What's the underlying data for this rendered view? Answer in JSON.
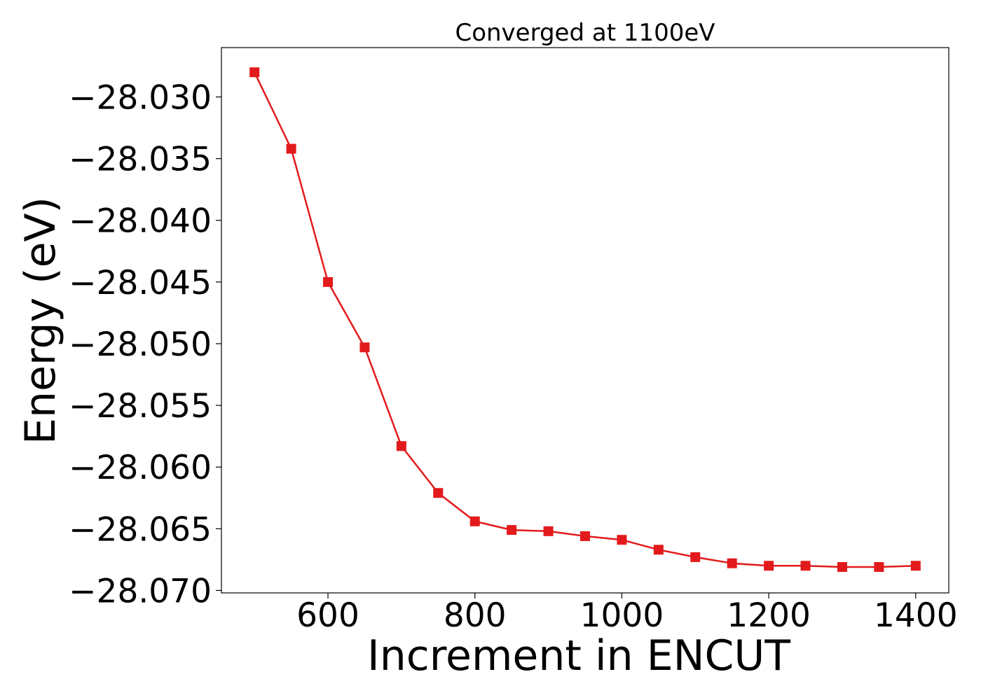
{
  "chart_data": {
    "type": "line",
    "title": "Converged at 1100eV",
    "xlabel": "Increment in ENCUT",
    "ylabel": "Energy (eV)",
    "xlim": [
      455,
      1445
    ],
    "ylim": [
      -28.0702,
      -28.026
    ],
    "x_ticks": [
      600,
      800,
      1000,
      1200,
      1400
    ],
    "x_tick_labels": [
      "600",
      "800",
      "1000",
      "1200",
      "1400"
    ],
    "y_ticks": [
      -28.03,
      -28.035,
      -28.04,
      -28.045,
      -28.05,
      -28.055,
      -28.06,
      -28.065,
      -28.07
    ],
    "y_tick_labels": [
      "−28.030",
      "−28.035",
      "−28.040",
      "−28.045",
      "−28.050",
      "−28.055",
      "−28.060",
      "−28.065",
      "−28.070"
    ],
    "grid": false,
    "series": [
      {
        "color": "#e31a1c",
        "marker": "square",
        "x": [
          500,
          550,
          600,
          650,
          700,
          750,
          800,
          850,
          900,
          950,
          1000,
          1050,
          1100,
          1150,
          1200,
          1250,
          1300,
          1350,
          1400
        ],
        "y": [
          -28.028,
          -28.0342,
          -28.045,
          -28.0503,
          -28.0583,
          -28.0621,
          -28.0644,
          -28.0651,
          -28.0652,
          -28.0656,
          -28.0659,
          -28.0667,
          -28.0673,
          -28.0678,
          -28.068,
          -28.068,
          -28.0681,
          -28.0681,
          -28.068
        ]
      }
    ]
  }
}
